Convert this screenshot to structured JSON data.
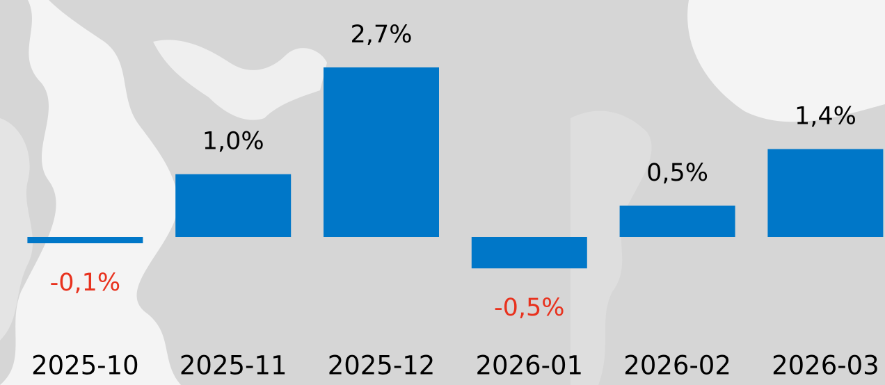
{
  "chart_data": {
    "type": "bar",
    "categories": [
      "2025-10",
      "2025-11",
      "2025-12",
      "2026-01",
      "2026-02",
      "2026-03"
    ],
    "values": [
      -0.1,
      1.0,
      2.7,
      -0.5,
      0.5,
      1.4
    ],
    "value_labels": [
      "-0,1%",
      "1,0%",
      "2,7%",
      "-0,5%",
      "0,5%",
      "1,4%"
    ],
    "color": "#0077c8",
    "label_color": "#000000",
    "negative_label_color": "#e8321e"
  }
}
